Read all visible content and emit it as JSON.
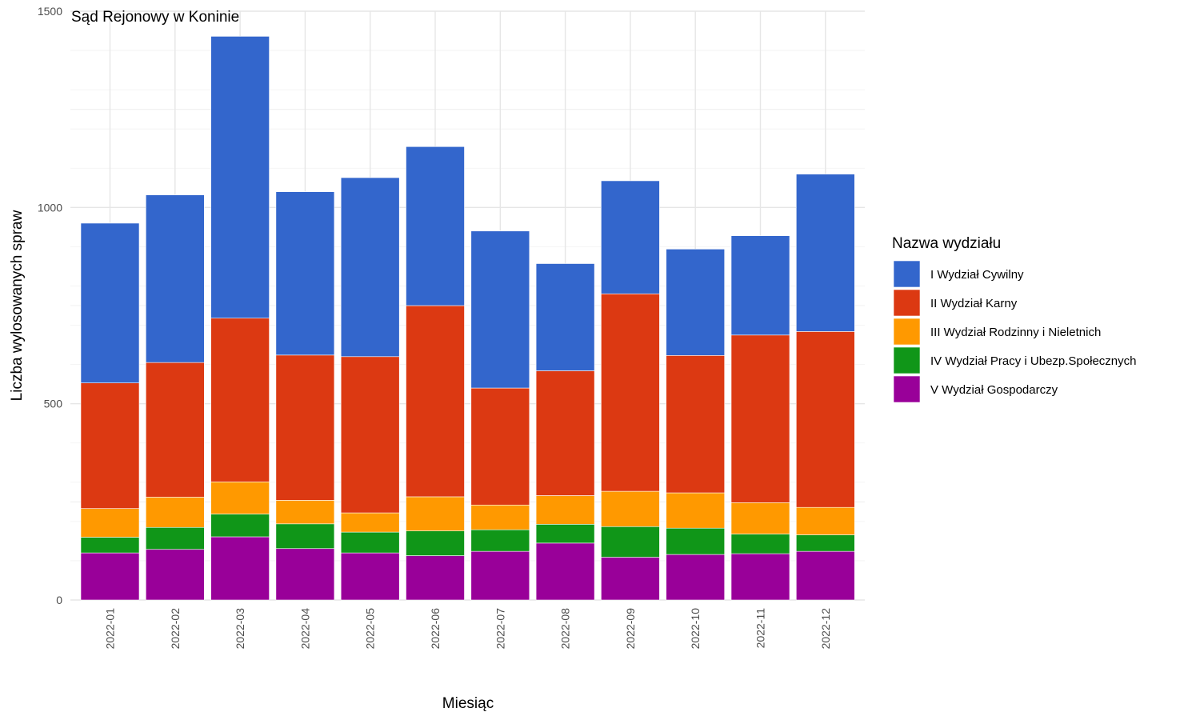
{
  "chart_data": {
    "type": "bar",
    "stacked": true,
    "title": "Sąd Rejonowy w Koninie",
    "xlabel": "Miesiąc",
    "ylabel": "Liczba wylosowanych spraw",
    "ylim": [
      0,
      1500
    ],
    "yticks": [
      0,
      500,
      1000,
      1500
    ],
    "grid": true,
    "legend_position": "right",
    "legend_title": "Nazwa wydziału",
    "categories": [
      "2022-01",
      "2022-02",
      "2022-03",
      "2022-04",
      "2022-05",
      "2022-06",
      "2022-07",
      "2022-08",
      "2022-09",
      "2022-10",
      "2022-11",
      "2022-12"
    ],
    "series": [
      {
        "name": "I Wydział Cywilny",
        "color": "#3366CC",
        "values": [
          407,
          427,
          718,
          416,
          456,
          405,
          400,
          273,
          288,
          271,
          253,
          401
        ]
      },
      {
        "name": "II Wydział Karny",
        "color": "#DC3912",
        "values": [
          320,
          343,
          417,
          370,
          398,
          487,
          298,
          318,
          503,
          350,
          427,
          448
        ]
      },
      {
        "name": "III Wydział Rodzinny i Nieletnich",
        "color": "#FF9900",
        "values": [
          73,
          77,
          82,
          60,
          49,
          87,
          63,
          73,
          90,
          90,
          80,
          70
        ]
      },
      {
        "name": "IV Wydział Pracy i Ubezp.Społecznych",
        "color": "#109618",
        "values": [
          40,
          56,
          58,
          63,
          53,
          63,
          55,
          48,
          78,
          67,
          50,
          42
        ]
      },
      {
        "name": "V Wydział Gospodarczy",
        "color": "#990099",
        "values": [
          120,
          129,
          161,
          131,
          120,
          113,
          124,
          145,
          109,
          116,
          118,
          124
        ]
      }
    ]
  }
}
